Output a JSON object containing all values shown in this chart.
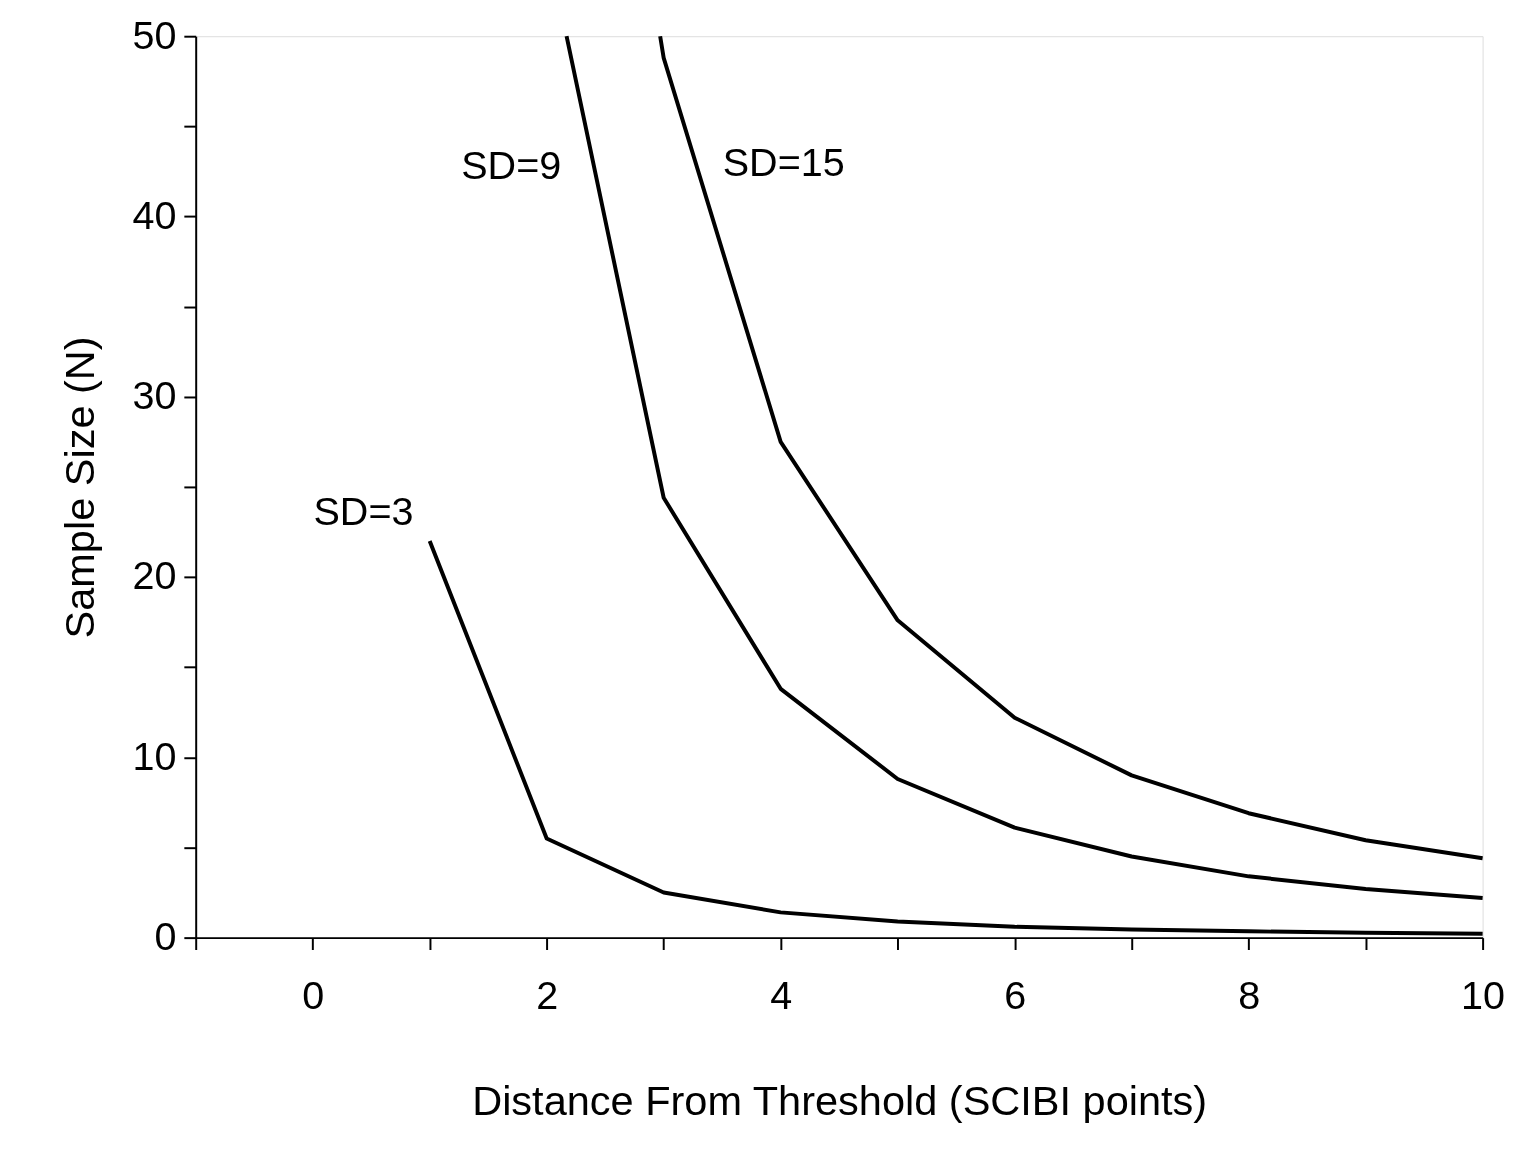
{
  "chart_data": {
    "type": "line",
    "xlabel": "Distance From Threshold (SCIBI points)",
    "ylabel": "Sample Size (N)",
    "xlim": [
      -1,
      10
    ],
    "ylim": [
      0,
      50
    ],
    "xticks": [
      {
        "value": -1,
        "label": null
      },
      0,
      {
        "value": 1,
        "label": null
      },
      2,
      {
        "value": 3,
        "label": null
      },
      4,
      {
        "value": 5,
        "label": null
      },
      6,
      {
        "value": 7,
        "label": null
      },
      8,
      {
        "value": 9,
        "label": null
      },
      10
    ],
    "yticks": [
      0,
      {
        "value": 5,
        "label": null
      },
      10,
      {
        "value": 15,
        "label": null
      },
      20,
      {
        "value": 25,
        "label": null
      },
      30,
      {
        "value": 35,
        "label": null
      },
      40,
      {
        "value": 45,
        "label": null
      },
      50
    ],
    "grid": false,
    "marker": "none",
    "line_style": "solid",
    "series": [
      {
        "name": "SD=3",
        "color": "#000000",
        "x": [
          1,
          2,
          3,
          4,
          5,
          6,
          7,
          8,
          9,
          10
        ],
        "values": [
          22,
          5.5,
          2.5,
          1.4,
          0.9,
          0.6,
          0.45,
          0.35,
          0.27,
          0.22
        ]
      },
      {
        "name": "SD=9",
        "color": "#000000",
        "x": [
          2.17,
          3,
          4,
          5,
          6,
          7,
          8,
          9,
          10
        ],
        "values": [
          50,
          24.4,
          13.8,
          8.8,
          6.1,
          4.5,
          3.4,
          2.7,
          2.2
        ]
      },
      {
        "name": "SD=15",
        "color": "#000000",
        "x": [
          2.97,
          3,
          4,
          5,
          6,
          7,
          8,
          9,
          10
        ],
        "values": [
          50,
          48.8,
          27.5,
          17.6,
          12.2,
          9.0,
          6.9,
          5.4,
          4.4
        ]
      }
    ]
  }
}
